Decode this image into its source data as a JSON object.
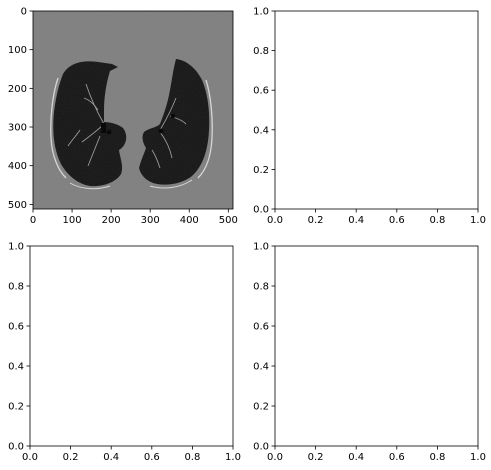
{
  "chart_data": [
    {
      "type": "image",
      "content": "lung-ct-slice",
      "image_size": [
        512,
        512
      ],
      "xlim": [
        0,
        512
      ],
      "ylim": [
        512,
        0
      ],
      "xticks": [
        0,
        100,
        200,
        300,
        400,
        500
      ],
      "yticks": [
        0,
        100,
        200,
        300,
        400,
        500
      ],
      "xtick_labels": [
        "0",
        "100",
        "200",
        "300",
        "400",
        "500"
      ],
      "ytick_labels": [
        "0",
        "100",
        "200",
        "300",
        "400",
        "500"
      ],
      "background_color": "#7f7f7f",
      "lung_color": "#141414",
      "edge_color": "#d8d8d8"
    },
    {
      "type": "empty",
      "xlim": [
        0,
        1
      ],
      "ylim": [
        0,
        1
      ],
      "xticks": [
        0,
        0.2,
        0.4,
        0.6,
        0.8,
        1.0
      ],
      "yticks": [
        0,
        0.2,
        0.4,
        0.6,
        0.8,
        1.0
      ],
      "xtick_labels": [
        "0.0",
        "0.2",
        "0.4",
        "0.6",
        "0.8",
        "1.0"
      ],
      "ytick_labels": [
        "0.0",
        "0.2",
        "0.4",
        "0.6",
        "0.8",
        "1.0"
      ]
    },
    {
      "type": "empty",
      "xlim": [
        0,
        1
      ],
      "ylim": [
        0,
        1
      ],
      "xticks": [
        0,
        0.2,
        0.4,
        0.6,
        0.8,
        1.0
      ],
      "yticks": [
        0,
        0.2,
        0.4,
        0.6,
        0.8,
        1.0
      ],
      "xtick_labels": [
        "0.0",
        "0.2",
        "0.4",
        "0.6",
        "0.8",
        "1.0"
      ],
      "ytick_labels": [
        "0.0",
        "0.2",
        "0.4",
        "0.6",
        "0.8",
        "1.0"
      ]
    },
    {
      "type": "empty",
      "xlim": [
        0,
        1
      ],
      "ylim": [
        0,
        1
      ],
      "xticks": [
        0,
        0.2,
        0.4,
        0.6,
        0.8,
        1.0
      ],
      "yticks": [
        0,
        0.2,
        0.4,
        0.6,
        0.8,
        1.0
      ],
      "xtick_labels": [
        "0.0",
        "0.2",
        "0.4",
        "0.6",
        "0.8",
        "1.0"
      ],
      "ytick_labels": [
        "0.0",
        "0.2",
        "0.4",
        "0.6",
        "0.8",
        "1.0"
      ]
    }
  ]
}
